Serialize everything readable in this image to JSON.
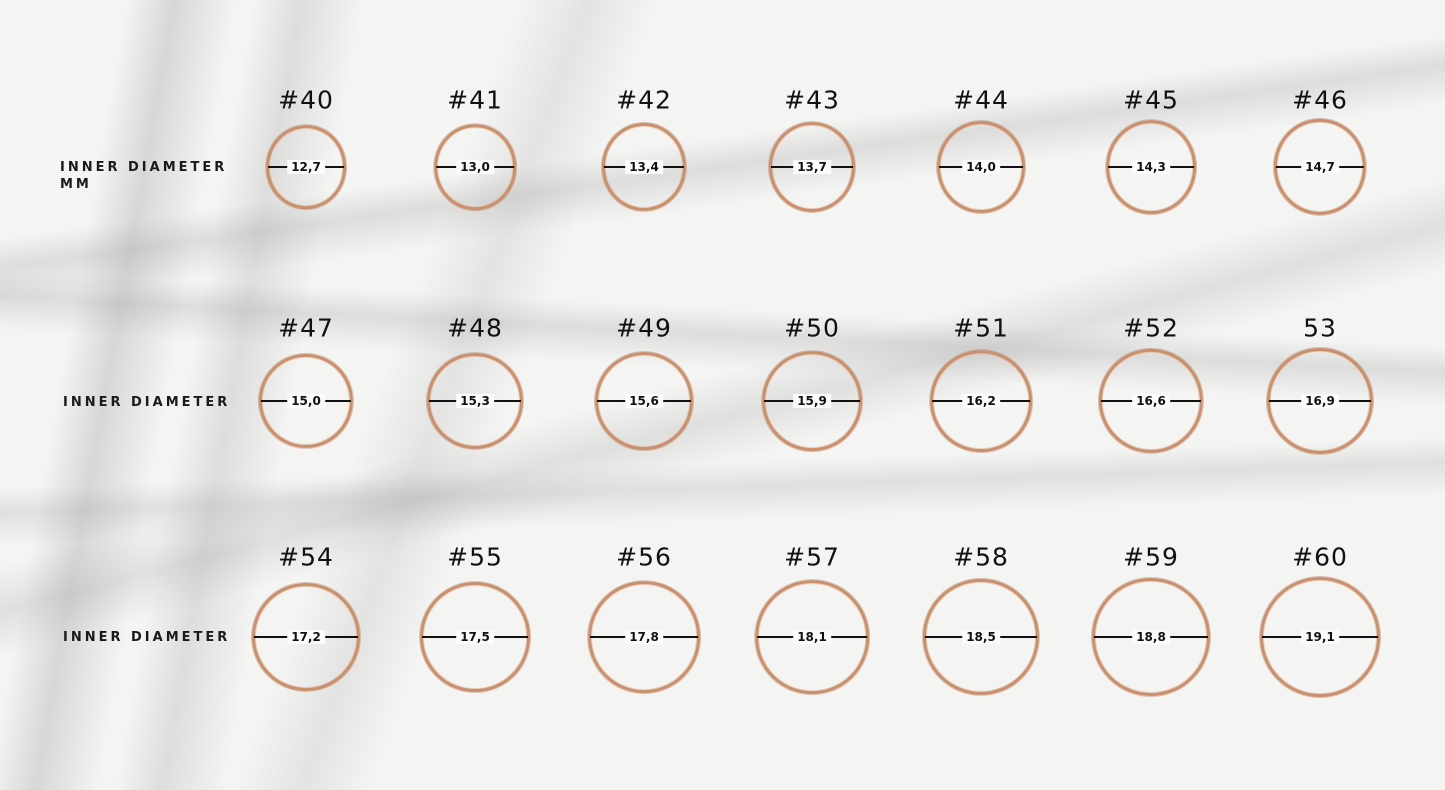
{
  "row_labels": [
    "INNER DIAMETER\nMM",
    "INNER DIAMETER",
    "INNER DIAMETER"
  ],
  "ring_color": "#c8906d",
  "rows": [
    [
      {
        "size": "#40",
        "diameter": "12,7"
      },
      {
        "size": "#41",
        "diameter": "13,0"
      },
      {
        "size": "#42",
        "diameter": "13,4"
      },
      {
        "size": "#43",
        "diameter": "13,7"
      },
      {
        "size": "#44",
        "diameter": "14,0"
      },
      {
        "size": "#45",
        "diameter": "14,3"
      },
      {
        "size": "#46",
        "diameter": "14,7"
      }
    ],
    [
      {
        "size": "#47",
        "diameter": "15,0"
      },
      {
        "size": "#48",
        "diameter": "15,3"
      },
      {
        "size": "#49",
        "diameter": "15,6"
      },
      {
        "size": "#50",
        "diameter": "15,9"
      },
      {
        "size": "#51",
        "diameter": "16,2"
      },
      {
        "size": "#52",
        "diameter": "16,6"
      },
      {
        "size": "53",
        "diameter": "16,9"
      }
    ],
    [
      {
        "size": "#54",
        "diameter": "17,2"
      },
      {
        "size": "#55",
        "diameter": "17,5"
      },
      {
        "size": "#56",
        "diameter": "17,8"
      },
      {
        "size": "#57",
        "diameter": "18,1"
      },
      {
        "size": "#58",
        "diameter": "18,5"
      },
      {
        "size": "#59",
        "diameter": "18,8"
      },
      {
        "size": "#60",
        "diameter": "19,1"
      }
    ]
  ]
}
